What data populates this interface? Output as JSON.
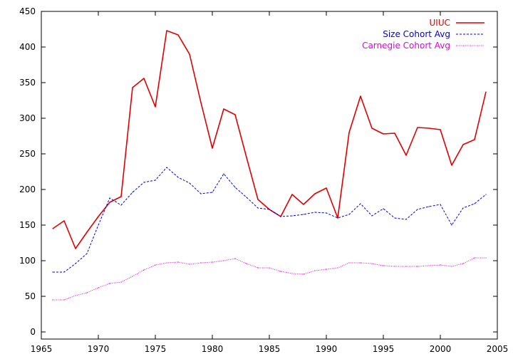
{
  "chart_data": {
    "type": "line",
    "title": "",
    "xlabel": "",
    "ylabel": "",
    "xlim": [
      1965,
      2005
    ],
    "ylim": [
      -10,
      450
    ],
    "grid": false,
    "legend_placement": "top-right",
    "x_ticks": [
      1965,
      1970,
      1975,
      1980,
      1985,
      1990,
      1995,
      2000,
      2005
    ],
    "y_ticks": [
      0,
      50,
      100,
      150,
      200,
      250,
      300,
      350,
      400,
      450
    ],
    "x": [
      1966,
      1967,
      1968,
      1969,
      1970,
      1971,
      1972,
      1973,
      1974,
      1975,
      1976,
      1977,
      1978,
      1979,
      1980,
      1981,
      1982,
      1983,
      1984,
      1985,
      1986,
      1987,
      1988,
      1989,
      1990,
      1991,
      1992,
      1993,
      1994,
      1995,
      1996,
      1997,
      1998,
      1999,
      2000,
      2001,
      2002,
      2003,
      2004
    ],
    "series": [
      {
        "name": "UIUC",
        "color": "#e00000",
        "style": "solid",
        "values": [
          145,
          156,
          117,
          140,
          162,
          182,
          190,
          343,
          356,
          316,
          423,
          417,
          390,
          322,
          258,
          313,
          305,
          245,
          186,
          172,
          162,
          193,
          179,
          194,
          202,
          160,
          280,
          331,
          286,
          278,
          279,
          248,
          287,
          286,
          284,
          234,
          263,
          270,
          337
        ]
      },
      {
        "name": "Size Cohort Avg",
        "color": "#0000e0",
        "style": "dashed",
        "values": [
          84,
          84,
          96,
          110,
          150,
          188,
          178,
          196,
          210,
          213,
          231,
          217,
          209,
          194,
          196,
          222,
          203,
          189,
          174,
          172,
          162,
          163,
          165,
          168,
          167,
          160,
          165,
          180,
          163,
          173,
          160,
          158,
          172,
          176,
          179,
          150,
          174,
          180,
          193
        ]
      },
      {
        "name": "Carnegie Cohort Avg",
        "color": "#e000e0",
        "style": "dotted",
        "values": [
          45,
          45,
          51,
          55,
          62,
          68,
          70,
          78,
          87,
          94,
          97,
          98,
          95,
          97,
          98,
          100,
          103,
          96,
          90,
          90,
          85,
          82,
          81,
          86,
          88,
          90,
          97,
          97,
          96,
          93,
          92,
          92,
          92,
          93,
          94,
          92,
          96,
          104,
          104
        ]
      }
    ]
  }
}
